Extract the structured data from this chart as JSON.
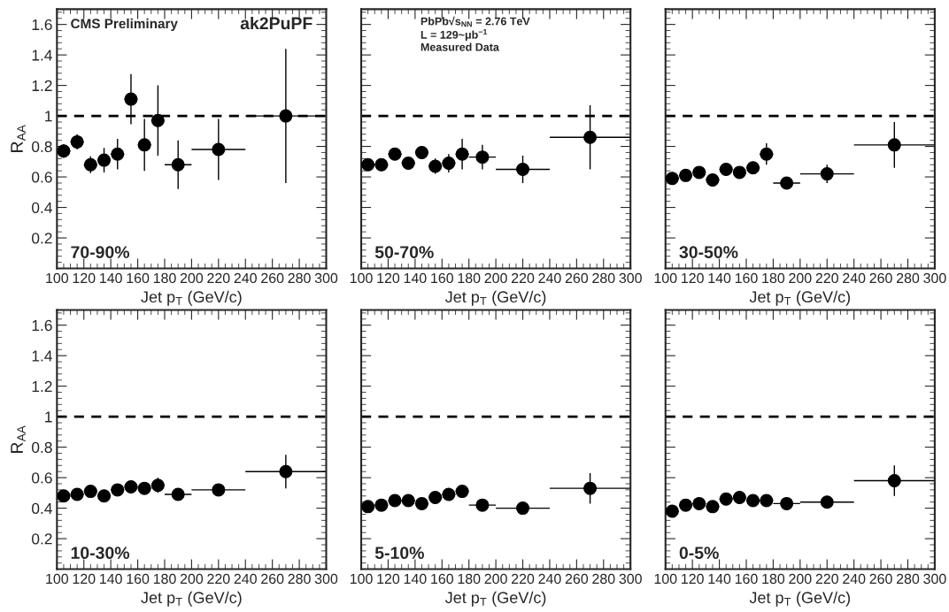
{
  "chart_data": [
    {
      "type": "scatter",
      "xlabel": "Jet p$_{T}$ (GeV/c)",
      "ylabel": "R$_{AA}$",
      "xlim": [
        100,
        300
      ],
      "ylim": [
        0,
        1.7
      ],
      "xticks": [
        100,
        120,
        140,
        160,
        180,
        200,
        220,
        240,
        260,
        280,
        300
      ],
      "yticks": [
        0.2,
        0.4,
        0.6,
        0.8,
        1,
        1.2,
        1.4,
        1.6
      ],
      "marker": "circle",
      "annotations": [
        "CMS Preliminary",
        "ak2PuPF",
        "70-90%"
      ],
      "ref_lines": [
        {
          "axis": "y",
          "value": 1,
          "line_style": "dashed",
          "color": "#000000"
        }
      ],
      "series": [
        {
          "color": "#000000",
          "x": [
            105,
            115,
            125,
            135,
            145,
            155,
            165,
            175,
            190,
            220,
            270
          ],
          "values": [
            0.77,
            0.83,
            0.68,
            0.71,
            0.75,
            1.11,
            0.81,
            0.97,
            0.68,
            0.78,
            1.0
          ],
          "errors": [
            0.045,
            0.05,
            0.055,
            0.08,
            0.1,
            0.165,
            0.17,
            0.23,
            0.16,
            0.2,
            0.44
          ],
          "xerrors": [
            5,
            5,
            5,
            5,
            5,
            5,
            5,
            5,
            10,
            20,
            30
          ]
        }
      ]
    },
    {
      "type": "scatter",
      "xlabel": "Jet p$_{T}$ (GeV/c)",
      "xlim": [
        100,
        300
      ],
      "ylim": [
        0,
        1.7
      ],
      "xticks": [
        100,
        120,
        140,
        160,
        180,
        200,
        220,
        240,
        260,
        280,
        300
      ],
      "yticks": [
        0.2,
        0.4,
        0.6,
        0.8,
        1,
        1.2,
        1.4,
        1.6
      ],
      "tick_labels": "x",
      "marker": "circle",
      "annotations": [
        "PbPb√s$_{NN}$ = 2.76 TeV",
        "L = 129~μb$^{−1}$",
        "Measured Data",
        "50-70%"
      ],
      "ref_lines": [
        {
          "axis": "y",
          "value": 1,
          "line_style": "dashed",
          "color": "#000000"
        }
      ],
      "series": [
        {
          "color": "#000000",
          "x": [
            105,
            115,
            125,
            135,
            145,
            155,
            165,
            175,
            190,
            220,
            270
          ],
          "values": [
            0.68,
            0.68,
            0.75,
            0.69,
            0.76,
            0.67,
            0.69,
            0.75,
            0.73,
            0.65,
            0.86
          ],
          "errors": [
            0.02,
            0.02,
            0.03,
            0.03,
            0.04,
            0.05,
            0.06,
            0.1,
            0.08,
            0.09,
            0.21
          ],
          "xerrors": [
            5,
            5,
            5,
            5,
            5,
            5,
            5,
            5,
            10,
            20,
            30
          ]
        }
      ]
    },
    {
      "type": "scatter",
      "xlabel": "Jet p$_{T}$ (GeV/c)",
      "xlim": [
        100,
        300
      ],
      "ylim": [
        0,
        1.7
      ],
      "xticks": [
        100,
        120,
        140,
        160,
        180,
        200,
        220,
        240,
        260,
        280,
        300
      ],
      "yticks": [
        0.2,
        0.4,
        0.6,
        0.8,
        1,
        1.2,
        1.4,
        1.6
      ],
      "tick_labels": "x",
      "marker": "circle",
      "annotations": [
        "30-50%"
      ],
      "ref_lines": [
        {
          "axis": "y",
          "value": 1,
          "line_style": "dashed",
          "color": "#000000"
        }
      ],
      "series": [
        {
          "color": "#000000",
          "x": [
            105,
            115,
            125,
            135,
            145,
            155,
            165,
            175,
            190,
            220,
            270
          ],
          "values": [
            0.59,
            0.61,
            0.63,
            0.58,
            0.65,
            0.63,
            0.66,
            0.75,
            0.56,
            0.62,
            0.81
          ],
          "errors": [
            0.02,
            0.02,
            0.02,
            0.02,
            0.03,
            0.04,
            0.04,
            0.07,
            0.04,
            0.06,
            0.15
          ],
          "xerrors": [
            5,
            5,
            5,
            5,
            5,
            5,
            5,
            5,
            10,
            20,
            30
          ]
        }
      ]
    },
    {
      "type": "scatter",
      "xlabel": "Jet p$_{T}$ (GeV/c)",
      "ylabel": "R$_{AA}$",
      "xlim": [
        100,
        300
      ],
      "ylim": [
        0,
        1.7
      ],
      "xticks": [
        100,
        120,
        140,
        160,
        180,
        200,
        220,
        240,
        260,
        280,
        300
      ],
      "yticks": [
        0.2,
        0.4,
        0.6,
        0.8,
        1,
        1.2,
        1.4,
        1.6
      ],
      "marker": "circle",
      "annotations": [
        "10-30%"
      ],
      "ref_lines": [
        {
          "axis": "y",
          "value": 1,
          "line_style": "dashed",
          "color": "#000000"
        }
      ],
      "series": [
        {
          "color": "#000000",
          "x": [
            105,
            115,
            125,
            135,
            145,
            155,
            165,
            175,
            190,
            220,
            270
          ],
          "values": [
            0.48,
            0.49,
            0.51,
            0.48,
            0.52,
            0.54,
            0.53,
            0.55,
            0.49,
            0.52,
            0.64
          ],
          "errors": [
            0.02,
            0.02,
            0.02,
            0.02,
            0.02,
            0.03,
            0.04,
            0.05,
            0.03,
            0.04,
            0.11
          ],
          "xerrors": [
            5,
            5,
            5,
            5,
            5,
            5,
            5,
            5,
            10,
            20,
            30
          ]
        }
      ]
    },
    {
      "type": "scatter",
      "xlabel": "Jet p$_{T}$ (GeV/c)",
      "xlim": [
        100,
        300
      ],
      "ylim": [
        0,
        1.7
      ],
      "xticks": [
        100,
        120,
        140,
        160,
        180,
        200,
        220,
        240,
        260,
        280,
        300
      ],
      "yticks": [
        0.2,
        0.4,
        0.6,
        0.8,
        1,
        1.2,
        1.4,
        1.6
      ],
      "tick_labels": "x",
      "marker": "circle",
      "annotations": [
        "5-10%"
      ],
      "ref_lines": [
        {
          "axis": "y",
          "value": 1,
          "line_style": "dashed",
          "color": "#000000"
        }
      ],
      "series": [
        {
          "color": "#000000",
          "x": [
            105,
            115,
            125,
            135,
            145,
            155,
            165,
            175,
            190,
            220,
            270
          ],
          "values": [
            0.41,
            0.42,
            0.45,
            0.45,
            0.43,
            0.47,
            0.49,
            0.51,
            0.42,
            0.4,
            0.53
          ],
          "errors": [
            0.02,
            0.02,
            0.02,
            0.02,
            0.02,
            0.02,
            0.03,
            0.04,
            0.03,
            0.03,
            0.1
          ],
          "xerrors": [
            5,
            5,
            5,
            5,
            5,
            5,
            5,
            5,
            10,
            20,
            30
          ]
        }
      ]
    },
    {
      "type": "scatter",
      "xlabel": "Jet p$_{T}$ (GeV/c)",
      "xlim": [
        100,
        300
      ],
      "ylim": [
        0,
        1.7
      ],
      "xticks": [
        100,
        120,
        140,
        160,
        180,
        200,
        220,
        240,
        260,
        280,
        300
      ],
      "yticks": [
        0.2,
        0.4,
        0.6,
        0.8,
        1,
        1.2,
        1.4,
        1.6
      ],
      "tick_labels": "x",
      "marker": "circle",
      "annotations": [
        "0-5%"
      ],
      "ref_lines": [
        {
          "axis": "y",
          "value": 1,
          "line_style": "dashed",
          "color": "#000000"
        }
      ],
      "series": [
        {
          "color": "#000000",
          "x": [
            105,
            115,
            125,
            135,
            145,
            155,
            165,
            175,
            190,
            220,
            270
          ],
          "values": [
            0.38,
            0.42,
            0.43,
            0.41,
            0.46,
            0.47,
            0.45,
            0.45,
            0.43,
            0.44,
            0.58
          ],
          "errors": [
            0.02,
            0.02,
            0.02,
            0.02,
            0.02,
            0.02,
            0.02,
            0.03,
            0.02,
            0.03,
            0.1
          ],
          "xerrors": [
            5,
            5,
            5,
            5,
            5,
            5,
            5,
            5,
            10,
            20,
            30
          ]
        }
      ]
    }
  ]
}
